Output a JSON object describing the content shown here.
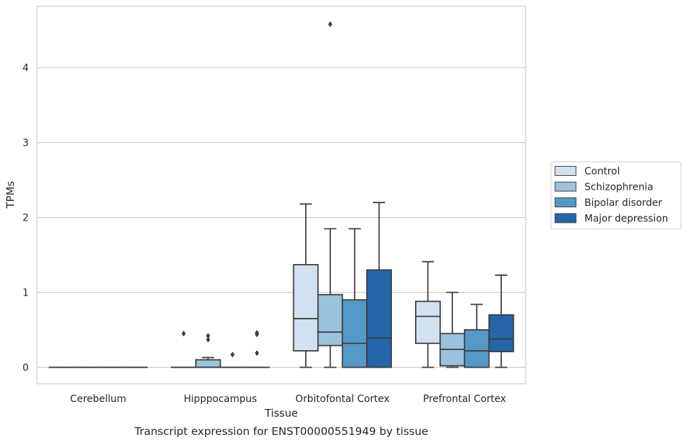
{
  "chart_data": {
    "type": "box",
    "xlabel": "Tissue",
    "ylabel": "TPMs",
    "caption": "Transcript expression for ENST00000551949 by tissue",
    "ylim": [
      -0.22,
      4.82
    ],
    "yticks": [
      0,
      1,
      2,
      3,
      4
    ],
    "grid": "horizontal",
    "legend_placement": "right",
    "categories": [
      "Cerebellum",
      "Hipppocampus",
      "Orbitofontal Cortex",
      "Prefrontal Cortex"
    ],
    "series": [
      {
        "name": "Control",
        "color": "#d2e1f1"
      },
      {
        "name": "Schizophrenia",
        "color": "#9bc3df"
      },
      {
        "name": "Bipolar disorder",
        "color": "#5698c6"
      },
      {
        "name": "Major depression",
        "color": "#2565a8"
      }
    ],
    "boxes": [
      [
        {
          "whislo": 0,
          "q1": 0,
          "med": 0,
          "q3": 0,
          "whishi": 0,
          "fliers": []
        },
        {
          "whislo": 0,
          "q1": 0,
          "med": 0,
          "q3": 0,
          "whishi": 0,
          "fliers": []
        },
        {
          "whislo": 0,
          "q1": 0,
          "med": 0,
          "q3": 0,
          "whishi": 0,
          "fliers": []
        },
        {
          "whislo": 0,
          "q1": 0,
          "med": 0,
          "q3": 0,
          "whishi": 0,
          "fliers": []
        }
      ],
      [
        {
          "whislo": 0,
          "q1": 0,
          "med": 0,
          "q3": 0,
          "whishi": 0,
          "fliers": [
            0.45
          ]
        },
        {
          "whislo": 0,
          "q1": 0,
          "med": 0,
          "q3": 0.1,
          "whishi": 0.13,
          "fliers": [
            0.37,
            0.42
          ]
        },
        {
          "whislo": 0,
          "q1": 0,
          "med": 0,
          "q3": 0,
          "whishi": 0,
          "fliers": [
            0.17
          ]
        },
        {
          "whislo": 0,
          "q1": 0,
          "med": 0,
          "q3": 0,
          "whishi": 0,
          "fliers": [
            0.19,
            0.44,
            0.46
          ]
        }
      ],
      [
        {
          "whislo": 0,
          "q1": 0.22,
          "med": 0.65,
          "q3": 1.37,
          "whishi": 2.18,
          "fliers": []
        },
        {
          "whislo": 0,
          "q1": 0.29,
          "med": 0.47,
          "q3": 0.97,
          "whishi": 1.85,
          "fliers": [
            4.58
          ]
        },
        {
          "whislo": 0,
          "q1": 0,
          "med": 0.32,
          "q3": 0.9,
          "whishi": 1.85,
          "fliers": []
        },
        {
          "whislo": 0,
          "q1": 0,
          "med": 0.39,
          "q3": 1.3,
          "whishi": 2.2,
          "fliers": []
        }
      ],
      [
        {
          "whislo": 0,
          "q1": 0.32,
          "med": 0.68,
          "q3": 0.88,
          "whishi": 1.41,
          "fliers": []
        },
        {
          "whislo": 0,
          "q1": 0.02,
          "med": 0.24,
          "q3": 0.45,
          "whishi": 1.0,
          "fliers": []
        },
        {
          "whislo": 0,
          "q1": 0,
          "med": 0.22,
          "q3": 0.5,
          "whishi": 0.84,
          "fliers": []
        },
        {
          "whislo": 0,
          "q1": 0.21,
          "med": 0.38,
          "q3": 0.7,
          "whishi": 1.23,
          "fliers": []
        }
      ]
    ]
  }
}
